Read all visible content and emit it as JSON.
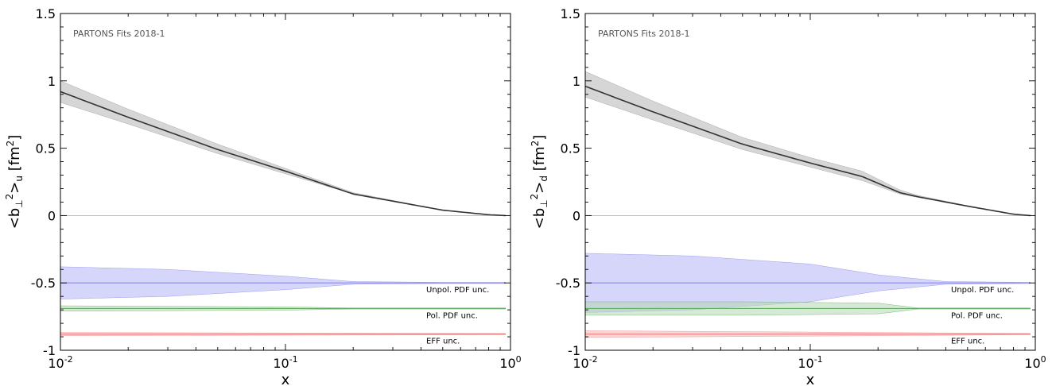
{
  "chart_data": [
    {
      "type": "line",
      "watermark": "PARTONS Fits 2018-1",
      "xlabel": "x",
      "ylabel": "<b⊥²>u [fm²]",
      "ylabel_parts": {
        "open": "<b",
        "perp": "⊥",
        "sup": "2",
        "close": ">",
        "sub": "u",
        "unit": "[fm",
        "unit_sup": "2",
        "unit_close": "]"
      },
      "xscale": "log",
      "xlim": [
        0.01,
        1
      ],
      "ylim": [
        -1,
        1.5
      ],
      "xticks": [
        {
          "value": 0.01,
          "base": "10",
          "exp": "-2"
        },
        {
          "value": 0.1,
          "base": "10",
          "exp": "-1"
        },
        {
          "value": 1,
          "base": "10",
          "exp": "0"
        }
      ],
      "yticks": [
        {
          "value": -1,
          "label": "-1"
        },
        {
          "value": -0.5,
          "label": "-0.5"
        },
        {
          "value": 0,
          "label": "0"
        },
        {
          "value": 0.5,
          "label": "0.5"
        },
        {
          "value": 1,
          "label": "1"
        },
        {
          "value": 1.5,
          "label": "1.5"
        }
      ],
      "zero_line": true,
      "main": {
        "x": [
          0.01,
          0.02,
          0.05,
          0.1,
          0.2,
          0.5,
          0.8,
          0.95
        ],
        "central": [
          0.92,
          0.73,
          0.49,
          0.33,
          0.16,
          0.04,
          0.006,
          0.0
        ],
        "lower": [
          0.84,
          0.68,
          0.46,
          0.31,
          0.16,
          0.04,
          0.006,
          0.0
        ],
        "upper": [
          1.0,
          0.79,
          0.53,
          0.35,
          0.17,
          0.04,
          0.006,
          0.0
        ],
        "color": "#333333",
        "band_color": "#bbbbbb"
      },
      "uncertainty_series": [
        {
          "name": "Unpol. PDF unc.",
          "level": -0.5,
          "color": "#8888ee",
          "band_color": "#b4b4f8",
          "x": [
            0.01,
            0.03,
            0.1,
            0.2,
            0.5,
            0.95
          ],
          "half_width": [
            0.12,
            0.1,
            0.05,
            0.01,
            0.004,
            0.004
          ]
        },
        {
          "name": "Pol. PDF unc.",
          "level": -0.69,
          "color": "#66aa66",
          "band_color": "#b3d9b3",
          "x": [
            0.01,
            0.1,
            0.2,
            0.95
          ],
          "half_width": [
            0.02,
            0.012,
            0.004,
            0.004
          ]
        },
        {
          "name": "EFF unc.",
          "level": -0.88,
          "color": "#ee8888",
          "band_color": "#f6b3b3",
          "x": [
            0.01,
            0.95
          ],
          "half_width": [
            0.012,
            0.005
          ]
        }
      ]
    },
    {
      "type": "line",
      "watermark": "PARTONS Fits 2018-1",
      "xlabel": "x",
      "ylabel": "<b⊥²>d [fm²]",
      "ylabel_parts": {
        "open": "<b",
        "perp": "⊥",
        "sup": "2",
        "close": ">",
        "sub": "d",
        "unit": "[fm",
        "unit_sup": "2",
        "unit_close": "]"
      },
      "xscale": "log",
      "xlim": [
        0.01,
        1
      ],
      "ylim": [
        -1,
        1.5
      ],
      "xticks": [
        {
          "value": 0.01,
          "base": "10",
          "exp": "-2"
        },
        {
          "value": 0.1,
          "base": "10",
          "exp": "-1"
        },
        {
          "value": 1,
          "base": "10",
          "exp": "0"
        }
      ],
      "yticks": [
        {
          "value": -1,
          "label": "-1"
        },
        {
          "value": -0.5,
          "label": "-0.5"
        },
        {
          "value": 0,
          "label": "0"
        },
        {
          "value": 0.5,
          "label": "0.5"
        },
        {
          "value": 1,
          "label": "1"
        },
        {
          "value": 1.5,
          "label": "1.5"
        }
      ],
      "zero_line": true,
      "main": {
        "x": [
          0.01,
          0.02,
          0.05,
          0.1,
          0.17,
          0.25,
          0.3,
          0.5,
          0.8,
          0.95
        ],
        "central": [
          0.96,
          0.77,
          0.53,
          0.39,
          0.29,
          0.17,
          0.14,
          0.07,
          0.01,
          0.0
        ],
        "lower": [
          0.88,
          0.71,
          0.49,
          0.36,
          0.26,
          0.16,
          0.135,
          0.068,
          0.01,
          0.0
        ],
        "upper": [
          1.07,
          0.85,
          0.58,
          0.43,
          0.33,
          0.19,
          0.15,
          0.072,
          0.01,
          0.0
        ],
        "color": "#333333",
        "band_color": "#bbbbbb"
      },
      "uncertainty_series": [
        {
          "name": "Unpol. PDF unc.",
          "level": -0.5,
          "color": "#8888ee",
          "band_color": "#b4b4f8",
          "x": [
            0.01,
            0.03,
            0.1,
            0.2,
            0.4,
            0.95
          ],
          "half_width": [
            0.22,
            0.2,
            0.14,
            0.06,
            0.01,
            0.004
          ]
        },
        {
          "name": "Pol. PDF unc.",
          "level": -0.69,
          "color": "#66aa66",
          "band_color": "#b3d9b3",
          "x": [
            0.01,
            0.05,
            0.2,
            0.3,
            0.95
          ],
          "half_width": [
            0.05,
            0.05,
            0.04,
            0.004,
            0.004
          ]
        },
        {
          "name": "EFF unc.",
          "level": -0.88,
          "color": "#ee8888",
          "band_color": "#f6b3b3",
          "x": [
            0.01,
            0.1,
            0.95
          ],
          "half_width": [
            0.025,
            0.015,
            0.005
          ]
        }
      ]
    }
  ]
}
